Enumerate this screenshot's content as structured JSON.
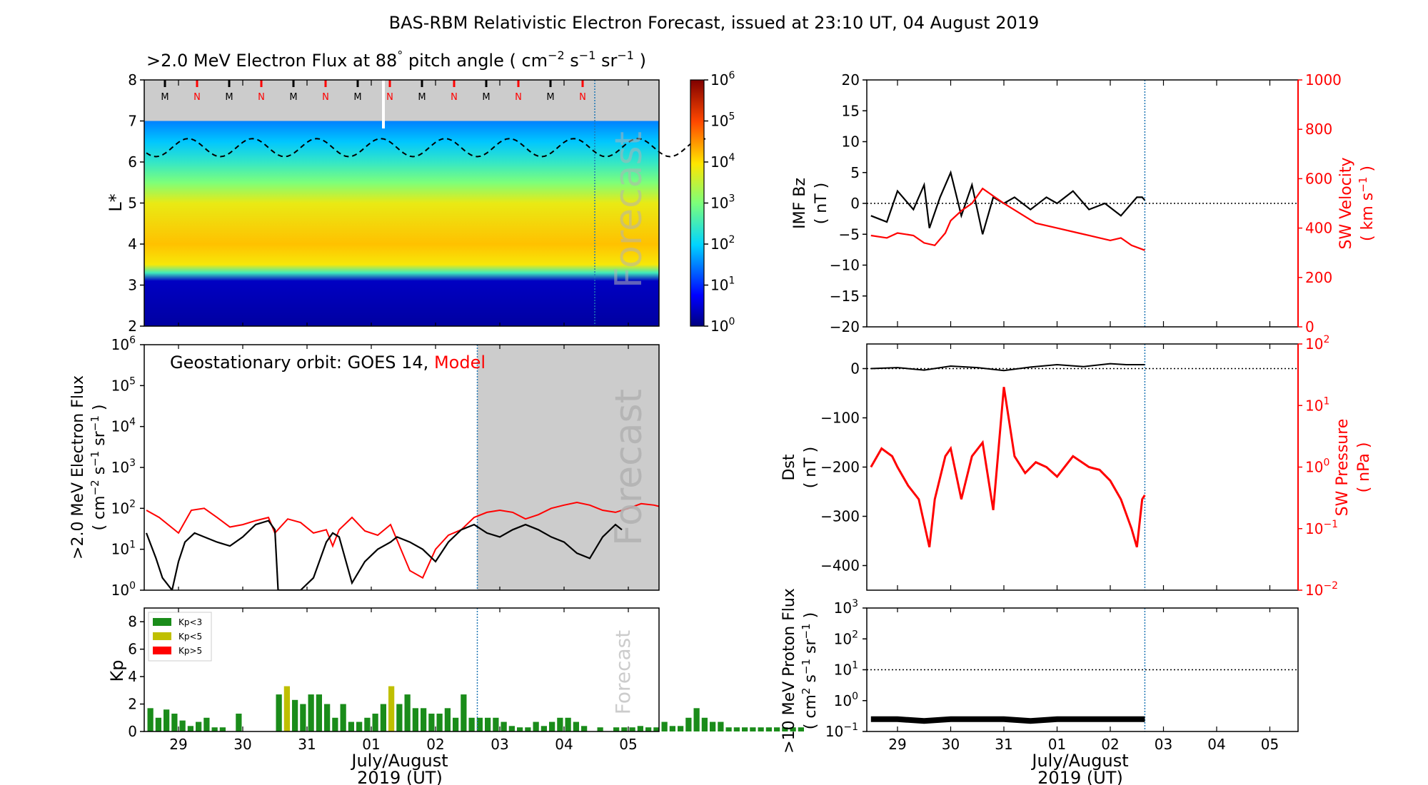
{
  "title": "BAS-RBM Relativistic Electron Forecast, issued at 23:10 UT, 04 August 2019",
  "colors": {
    "black": "#000000",
    "red": "#ff0000",
    "kp_low": "#1a8c1a",
    "kp_mid": "#bfbf00",
    "kp_high": "#ff0000",
    "forecast_grey": "#cccccc",
    "forecast_line": "#1f77b4"
  },
  "x_axis": {
    "ticks": [
      "29",
      "30",
      "31",
      "01",
      "02",
      "03",
      "04",
      "05"
    ],
    "label_line1": "July/August",
    "label_line2": "2019 (UT)"
  },
  "forecast_label": "Forecast",
  "chart_data": [
    {
      "id": "lstar_flux",
      "type": "heatmap",
      "title_main": ">2.0 MeV Electron Flux at 88",
      "title_deg": "°",
      "title_tail": " pitch angle ( cm",
      "title_close": " )",
      "ylabel": "L*",
      "ylim": [
        2,
        8
      ],
      "yticks": [
        "2",
        "3",
        "4",
        "5",
        "6",
        "7",
        "8"
      ],
      "colorbar_ticks": [
        "10",
        "10",
        "10",
        "10",
        "10",
        "10",
        "10"
      ],
      "colorbar_exps": [
        "0",
        "1",
        "2",
        "3",
        "4",
        "5",
        "6"
      ],
      "markers": [
        "M",
        "N",
        "M",
        "N",
        "M",
        "N",
        "M",
        "N",
        "M",
        "N",
        "M",
        "N",
        "M",
        "N"
      ],
      "bands": [
        {
          "l": 2.0,
          "log_flux": 0.2
        },
        {
          "l": 3.1,
          "log_flux": 0.4
        },
        {
          "l": 3.3,
          "log_flux": 2.5
        },
        {
          "l": 3.5,
          "log_flux": 3.9
        },
        {
          "l": 4.0,
          "log_flux": 4.2
        },
        {
          "l": 5.0,
          "log_flux": 3.8
        },
        {
          "l": 5.5,
          "log_flux": 3.0
        },
        {
          "l": 6.0,
          "log_flux": 2.4
        },
        {
          "l": 6.5,
          "log_flux": 1.9
        },
        {
          "l": 7.0,
          "log_flux": 1.5
        }
      ]
    },
    {
      "id": "geo_flux",
      "type": "line",
      "label_prefix": "Geostationary orbit:   GOES 14,",
      "label_model": "Model",
      "ylabel_line1": ">2.0 MeV Electron Flux",
      "ylabel_line2": "( cm",
      "yscale": "log",
      "ylim": [
        1,
        1000000
      ],
      "ytick_bases": [
        "10",
        "10",
        "10",
        "10",
        "10",
        "10",
        "10"
      ],
      "ytick_exps": [
        "0",
        "1",
        "2",
        "3",
        "4",
        "5",
        "6"
      ],
      "series": [
        {
          "color": "#ff0000",
          "x": [
            -0.5,
            -0.3,
            0.0,
            0.2,
            0.4,
            0.6,
            0.8,
            1.0,
            1.2,
            1.4,
            1.5,
            1.7,
            1.9,
            2.1,
            2.3,
            2.4,
            2.5,
            2.7,
            2.9,
            3.1,
            3.3,
            3.6,
            3.8,
            4.0,
            4.2,
            4.4,
            4.6,
            4.8,
            5.0,
            5.2,
            5.4,
            5.6,
            5.8,
            6.0,
            6.2,
            6.4,
            6.6,
            6.8,
            7.0,
            7.2,
            7.4,
            7.6,
            7.8,
            8.0,
            8.2
          ],
          "y": [
            90,
            60,
            25,
            90,
            100,
            60,
            35,
            40,
            50,
            60,
            25,
            55,
            45,
            25,
            30,
            12,
            30,
            60,
            28,
            22,
            40,
            3,
            2,
            10,
            22,
            30,
            60,
            80,
            90,
            80,
            55,
            70,
            100,
            120,
            140,
            120,
            90,
            80,
            100,
            130,
            120,
            100,
            100,
            95,
            100
          ]
        },
        {
          "color": "#000000",
          "x": [
            -0.5,
            -0.35,
            -0.25,
            -0.1,
            0.0,
            0.1,
            0.25,
            0.4,
            0.6,
            0.8,
            1.0,
            1.2,
            1.4,
            1.5,
            1.55,
            1.7,
            1.9,
            2.1,
            2.3,
            2.4,
            2.5,
            2.7,
            2.9,
            3.1,
            3.3,
            3.4,
            3.6,
            3.8,
            4.0,
            4.2,
            4.4,
            4.6,
            4.8,
            5.0,
            5.2,
            5.4,
            5.6,
            5.8,
            6.0,
            6.2,
            6.4,
            6.6,
            6.8,
            6.9
          ],
          "y": [
            25,
            6,
            2,
            1,
            5,
            15,
            25,
            20,
            15,
            12,
            20,
            40,
            50,
            30,
            1,
            1,
            1,
            2,
            15,
            25,
            20,
            1.5,
            5,
            10,
            15,
            20,
            15,
            10,
            5,
            15,
            30,
            40,
            25,
            20,
            30,
            40,
            30,
            20,
            15,
            8,
            6,
            20,
            40,
            30
          ]
        }
      ]
    },
    {
      "id": "kp",
      "type": "bar",
      "ylabel": "Kp",
      "ylim": [
        0,
        9
      ],
      "yticks": [
        "0",
        "2",
        "4",
        "6",
        "8"
      ],
      "legend": [
        "Kp<3",
        "Kp<5",
        "Kp>5"
      ],
      "values": [
        1.7,
        1.0,
        1.6,
        1.3,
        0.8,
        0.4,
        0.7,
        1.0,
        0.3,
        0.3,
        0,
        1.3,
        0,
        0,
        0,
        0,
        2.7,
        3.3,
        2.3,
        2.0,
        2.7,
        2.7,
        2.0,
        1.0,
        2.0,
        0.7,
        0.7,
        1.0,
        1.3,
        2.0,
        3.3,
        2.0,
        2.7,
        1.7,
        1.7,
        1.3,
        1.3,
        1.7,
        1.0,
        2.7,
        1.0,
        1.0,
        1.0,
        1.0,
        0.7,
        0.4,
        0.3,
        0.3,
        0.7,
        0.4,
        0.7,
        1.0,
        1.0,
        0.7,
        0.4,
        0,
        0.3,
        0,
        0.3,
        0.3,
        0.3,
        0.4,
        0.3,
        0.3,
        0.7,
        0.4,
        0.4,
        1.0,
        1.7,
        1.0,
        0.7,
        0.7,
        0.3,
        0.3,
        0.3,
        0.3,
        0.3,
        0.3,
        0.3,
        0.3,
        0.3,
        0.3
      ]
    },
    {
      "id": "imf_sw",
      "type": "line",
      "ylabel_left_line1": "IMF Bz",
      "ylabel_left_line2": "( nT )",
      "ylim_left": [
        -20,
        20
      ],
      "yticks_left": [
        "−20",
        "−15",
        "−10",
        "−5",
        "0",
        "5",
        "10",
        "15",
        "20"
      ],
      "ylabel_right_line1": "SW Velocity",
      "ylabel_right_line2": "( km s",
      "ylim_right": [
        0,
        1000
      ],
      "yticks_right": [
        "0",
        "200",
        "400",
        "600",
        "800",
        "1000"
      ],
      "series": [
        {
          "color": "#000000",
          "axis": "left",
          "x": [
            -0.5,
            -0.2,
            0.0,
            0.3,
            0.5,
            0.6,
            0.8,
            1.0,
            1.2,
            1.4,
            1.6,
            1.8,
            2.0,
            2.2,
            2.5,
            2.8,
            3.0,
            3.3,
            3.6,
            3.9,
            4.2,
            4.4,
            4.5,
            4.6,
            4.65
          ],
          "y": [
            -2,
            -3,
            2,
            -1,
            3,
            -4,
            1,
            5,
            -2,
            3,
            -5,
            1,
            0,
            1,
            -1,
            1,
            0,
            2,
            -1,
            0,
            -2,
            0,
            1,
            1,
            0.5
          ]
        },
        {
          "color": "#ff0000",
          "axis": "right",
          "x": [
            -0.5,
            -0.2,
            0.0,
            0.3,
            0.5,
            0.7,
            0.9,
            1.0,
            1.2,
            1.4,
            1.6,
            1.8,
            2.0,
            2.3,
            2.6,
            3.0,
            3.4,
            3.8,
            4.0,
            4.2,
            4.4,
            4.65
          ],
          "y": [
            370,
            360,
            380,
            370,
            340,
            330,
            380,
            430,
            470,
            500,
            560,
            530,
            500,
            460,
            420,
            400,
            380,
            360,
            350,
            360,
            330,
            310
          ]
        }
      ]
    },
    {
      "id": "dst_pressure",
      "type": "line",
      "ylabel_left_line1": "Dst",
      "ylabel_left_line2": "( nT )",
      "ylim_left": [
        -450,
        50
      ],
      "yticks_left": [
        "−400",
        "−300",
        "−200",
        "−100",
        "0"
      ],
      "ylabel_right_line1": "SW Pressure",
      "ylabel_right_line2": "( nPa )",
      "yscale_right": "log",
      "ylim_right": [
        0.01,
        100
      ],
      "ytick_right_bases": [
        "10",
        "10",
        "10",
        "10",
        "10"
      ],
      "ytick_right_exps": [
        "−2",
        "−1",
        "0",
        "1",
        "2"
      ],
      "series": [
        {
          "color": "#000000",
          "axis": "left",
          "x": [
            -0.5,
            0.0,
            0.5,
            1.0,
            1.5,
            2.0,
            2.5,
            3.0,
            3.5,
            4.0,
            4.3,
            4.65
          ],
          "y": [
            0,
            2,
            -3,
            5,
            2,
            -4,
            3,
            8,
            4,
            10,
            8,
            8
          ]
        },
        {
          "color": "#ff0000",
          "axis": "right",
          "x": [
            -0.5,
            -0.3,
            -0.1,
            0.0,
            0.2,
            0.4,
            0.6,
            0.7,
            0.9,
            1.0,
            1.2,
            1.4,
            1.6,
            1.8,
            2.0,
            2.2,
            2.4,
            2.6,
            2.8,
            3.0,
            3.3,
            3.6,
            3.8,
            4.0,
            4.2,
            4.4,
            4.5,
            4.6,
            4.65
          ],
          "y": [
            1.0,
            2.0,
            1.5,
            1.0,
            0.5,
            0.3,
            0.05,
            0.3,
            1.5,
            2.0,
            0.3,
            1.5,
            2.5,
            0.2,
            20,
            1.5,
            0.8,
            1.2,
            1.0,
            0.7,
            1.5,
            1.0,
            0.9,
            0.6,
            0.3,
            0.1,
            0.05,
            0.3,
            0.35
          ]
        }
      ]
    },
    {
      "id": "proton_flux",
      "type": "line",
      "ylabel_line1": ">10 MeV Proton Flux",
      "ylabel_line2": "( cm",
      "yscale": "log",
      "ylim": [
        0.1,
        1000
      ],
      "ytick_bases": [
        "10",
        "10",
        "10",
        "10",
        "10"
      ],
      "ytick_exps": [
        "−1",
        "0",
        "1",
        "2",
        "3"
      ],
      "threshold": 10,
      "series": [
        {
          "color": "#000000",
          "x": [
            -0.5,
            0.0,
            0.5,
            1.0,
            1.5,
            2.0,
            2.5,
            3.0,
            3.5,
            4.0,
            4.65
          ],
          "y": [
            0.25,
            0.25,
            0.22,
            0.25,
            0.25,
            0.25,
            0.22,
            0.25,
            0.25,
            0.25,
            0.25
          ]
        }
      ]
    }
  ]
}
